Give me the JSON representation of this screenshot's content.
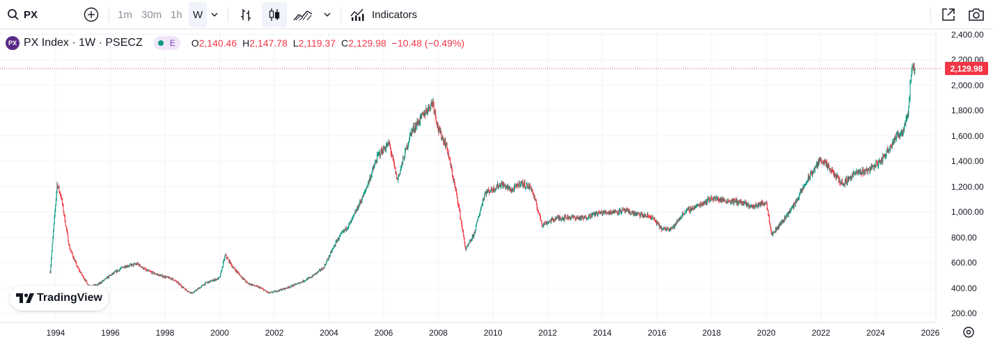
{
  "toolbar": {
    "symbol": "PX",
    "intervals": [
      "1m",
      "30m",
      "1h",
      "W"
    ],
    "active_interval": "W",
    "indicators_label": "Indicators",
    "icons": [
      "search-icon",
      "add-symbol-icon",
      "chevron-down-icon",
      "bar-chart-icon",
      "candlestick-icon",
      "area-chart-icon",
      "chevron-down-icon",
      "indicators-icon",
      "share-icon",
      "camera-icon"
    ]
  },
  "legend": {
    "title": "PX Index · 1W · PSECZ",
    "market_status_badge": "E",
    "open_label": "O",
    "open": "2,140.46",
    "high_label": "H",
    "high": "2,147.78",
    "low_label": "L",
    "low": "2,119.37",
    "close_label": "C",
    "close": "2,129.98",
    "change": "−10.48 (−0.49%)"
  },
  "price_axis": {
    "labels": [
      "2,400.00",
      "2,200.00",
      "2,000.00",
      "1,800.00",
      "1,600.00",
      "1,400.00",
      "1,200.00",
      "1,000.00",
      "800.00",
      "600.00",
      "400.00",
      "200.00"
    ],
    "last_price": "2,129.98"
  },
  "time_axis": {
    "labels": [
      "1994",
      "1996",
      "1998",
      "2000",
      "2002",
      "2004",
      "2006",
      "2008",
      "2010",
      "2012",
      "2014",
      "2016",
      "2018",
      "2020",
      "2022",
      "2024",
      "2026"
    ]
  },
  "watermark": "TradingView",
  "colors": {
    "up": "#089981",
    "down": "#f23645",
    "accent": "#2962ff",
    "text": "#131722",
    "grid": "#f0f3fa",
    "badge_bg": "#e9d7f5",
    "badge_text": "#7b3fb5",
    "symbol_icon_bg": "#5b2a86"
  },
  "chart_data": {
    "type": "candlestick",
    "interval": "1W",
    "symbol": "PX Index",
    "exchange": "PSECZ",
    "ylim": [
      150,
      2450
    ],
    "xlim": [
      1993.5,
      2026.6
    ],
    "grid": true,
    "last_price": 2129.98,
    "x": [
      1993.8,
      1994.05,
      1994.2,
      1994.5,
      1994.8,
      1995.2,
      1995.5,
      1996.0,
      1996.5,
      1997.0,
      1997.3,
      1997.8,
      1998.3,
      1998.8,
      1999.0,
      1999.5,
      2000.0,
      2000.2,
      2000.5,
      2001.0,
      2001.5,
      2001.8,
      2002.3,
      2002.8,
      2003.3,
      2003.8,
      2004.3,
      2004.8,
      2005.3,
      2005.8,
      2006.2,
      2006.5,
      2007.0,
      2007.5,
      2007.8,
      2008.0,
      2008.3,
      2008.7,
      2009.0,
      2009.3,
      2009.7,
      2010.0,
      2010.3,
      2010.7,
      2011.0,
      2011.4,
      2011.8,
      2012.3,
      2012.8,
      2013.3,
      2013.8,
      2014.3,
      2014.8,
      2015.3,
      2015.8,
      2016.2,
      2016.6,
      2017.0,
      2017.5,
      2018.0,
      2018.5,
      2019.0,
      2019.5,
      2020.0,
      2020.2,
      2020.6,
      2021.0,
      2021.5,
      2022.0,
      2022.3,
      2022.8,
      2023.2,
      2023.7,
      2024.2,
      2024.7,
      2025.0,
      2025.2,
      2025.3,
      2025.45
    ],
    "values": [
      530,
      1220,
      1120,
      720,
      560,
      420,
      420,
      500,
      570,
      590,
      540,
      500,
      470,
      380,
      360,
      440,
      480,
      660,
      560,
      440,
      400,
      360,
      390,
      430,
      480,
      560,
      780,
      920,
      1150,
      1450,
      1540,
      1250,
      1630,
      1780,
      1870,
      1650,
      1520,
      1100,
      700,
      820,
      1150,
      1180,
      1220,
      1170,
      1230,
      1190,
      900,
      950,
      960,
      950,
      990,
      1000,
      1010,
      980,
      960,
      860,
      880,
      1000,
      1050,
      1110,
      1090,
      1080,
      1040,
      1080,
      820,
      930,
      1050,
      1250,
      1420,
      1340,
      1220,
      1300,
      1330,
      1400,
      1580,
      1640,
      1800,
      2100,
      2129.98
    ]
  }
}
